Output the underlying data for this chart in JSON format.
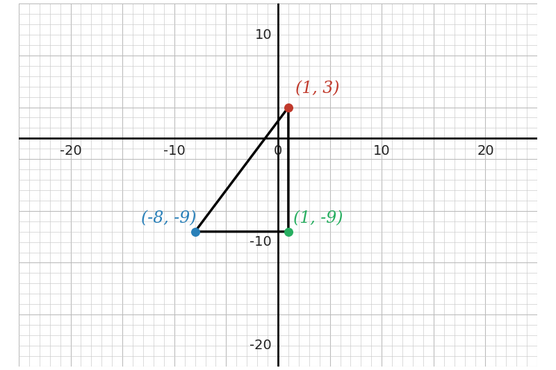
{
  "points": {
    "A": [
      1,
      3
    ],
    "B": [
      -8,
      -9
    ],
    "C": [
      1,
      -9
    ]
  },
  "point_colors": {
    "A": "#c0392b",
    "B": "#2980b9",
    "C": "#27ae60"
  },
  "label_colors": {
    "A": "#c0392b",
    "B": "#2980b9",
    "C": "#27ae60"
  },
  "labels": {
    "A": "(1, 3)",
    "B": "(-8, -9)",
    "C": "(1, -9)"
  },
  "label_offsets": {
    "A": [
      0.7,
      1.0
    ],
    "B": [
      -5.2,
      0.5
    ],
    "C": [
      0.5,
      0.5
    ]
  },
  "triangle_color": "#000000",
  "triangle_linewidth": 2.5,
  "point_size": 70,
  "xlim": [
    -25,
    25
  ],
  "ylim": [
    -22,
    13
  ],
  "xticks": [
    -20,
    -10,
    0,
    10,
    20
  ],
  "yticks": [
    -20,
    -10,
    0,
    10
  ],
  "grid_minor_color": "#cccccc",
  "grid_major_color": "#bbbbbb",
  "axis_color": "#000000",
  "background_color": "#ffffff",
  "tick_fontsize": 14,
  "label_fontsize": 17
}
